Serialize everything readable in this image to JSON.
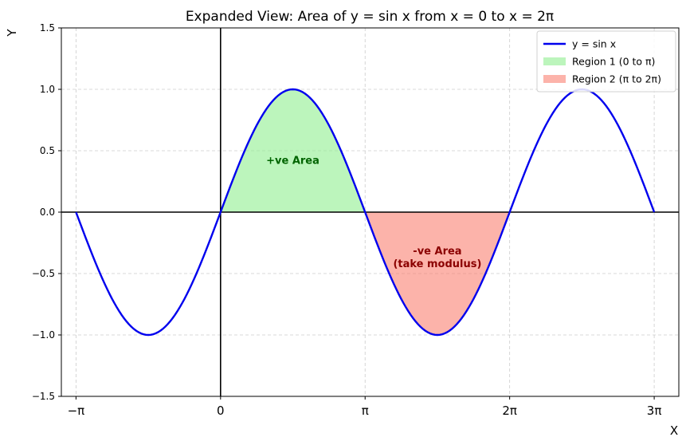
{
  "chart_data": {
    "type": "line",
    "title": "Expanded View: Area of y = sin x from x = 0 to x = 2π",
    "xlabel": "X",
    "ylabel": "Y",
    "xlim": [
      -3.46,
      9.96
    ],
    "ylim": [
      -1.5,
      1.5
    ],
    "grid": true,
    "legend_position": "top-right",
    "x_ticks": [
      {
        "value": -3.14159,
        "label": "−π"
      },
      {
        "value": 0,
        "label": "0"
      },
      {
        "value": 3.14159,
        "label": "π"
      },
      {
        "value": 6.28319,
        "label": "2π"
      },
      {
        "value": 9.42478,
        "label": "3π"
      }
    ],
    "y_ticks": [
      {
        "value": -1.5,
        "label": "−1.5"
      },
      {
        "value": -1.0,
        "label": "−1.0"
      },
      {
        "value": -0.5,
        "label": "−0.5"
      },
      {
        "value": 0.0,
        "label": "0.0"
      },
      {
        "value": 0.5,
        "label": "0.5"
      },
      {
        "value": 1.0,
        "label": "1.0"
      },
      {
        "value": 1.5,
        "label": "1.5"
      }
    ],
    "series": [
      {
        "name": "y = sin x",
        "kind": "line",
        "function": "sin",
        "x_range": [
          -3.14159,
          9.42478
        ],
        "color": "#0000ee"
      },
      {
        "name": "Region 1 (0 to π)",
        "kind": "area",
        "function": "sin",
        "x_range": [
          0,
          3.14159
        ],
        "color": "#90ee90"
      },
      {
        "name": "Region 2 (π to 2π)",
        "kind": "area",
        "function": "sin",
        "x_range": [
          3.14159,
          6.28319
        ],
        "color": "#fa8072"
      }
    ],
    "legend": [
      {
        "label": "y = sin x",
        "swatch": "line",
        "color": "#0000ee"
      },
      {
        "label": "Region 1 (0 to π)",
        "swatch": "patch",
        "color": "#90ee90"
      },
      {
        "label": "Region 2 (π to 2π)",
        "swatch": "patch",
        "color": "#fa8072"
      }
    ],
    "annotations": [
      {
        "lines": [
          "+ve Area"
        ],
        "x": 1.5708,
        "y": 0.42,
        "color": "#006400"
      },
      {
        "lines": [
          "-ve Area",
          "(take modulus)"
        ],
        "x": 4.7124,
        "y": -0.37,
        "color": "#8b0000"
      }
    ]
  }
}
